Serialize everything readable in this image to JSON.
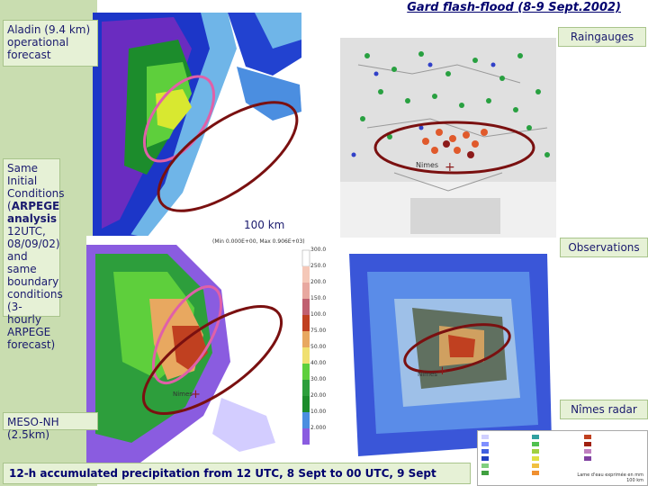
{
  "title": "Gard flash-flood (8-9 Sept.2002)",
  "labels": {
    "aladin": "Aladin (9.4 km) operational forecast",
    "same_init_1": "Same Initial Conditions (",
    "same_init_bold": "ARPEGE analysis",
    "same_init_2": " 12UTC, 08/09/02) and same boundary conditions (3-hourly ARPEGE forecast)",
    "mesonh": "MESO-NH (2.5km)",
    "raingauges": "Raingauges",
    "observations": "Observations",
    "nimes_radar": "Nîmes radar"
  },
  "map_text": {
    "scale": "100 km",
    "nimes": "Nimes",
    "mesonh_info": "(Min 0.000E+00, Max 0.906E+03)",
    "scale_ticks": [
      "300.0",
      "250.0",
      "200.0",
      "150.0",
      "100.0",
      "75.00",
      "50.00",
      "40.00",
      "30.00",
      "20.00",
      "10.00",
      "2.000"
    ],
    "radar_legend_lines": [
      "Lame d'eau exprimée en mm",
      "100 km"
    ]
  },
  "caption": "12-h accumulated precipitation from 12 UTC, 8 Sept to 00 UTC, 9 Sept",
  "colors": {
    "title": "#00006e",
    "green_bg": "#c9ddb0",
    "label_bg": "#e6f1d6",
    "highlight_red": "#7a1010",
    "highlight_pink": "#e060a8"
  }
}
